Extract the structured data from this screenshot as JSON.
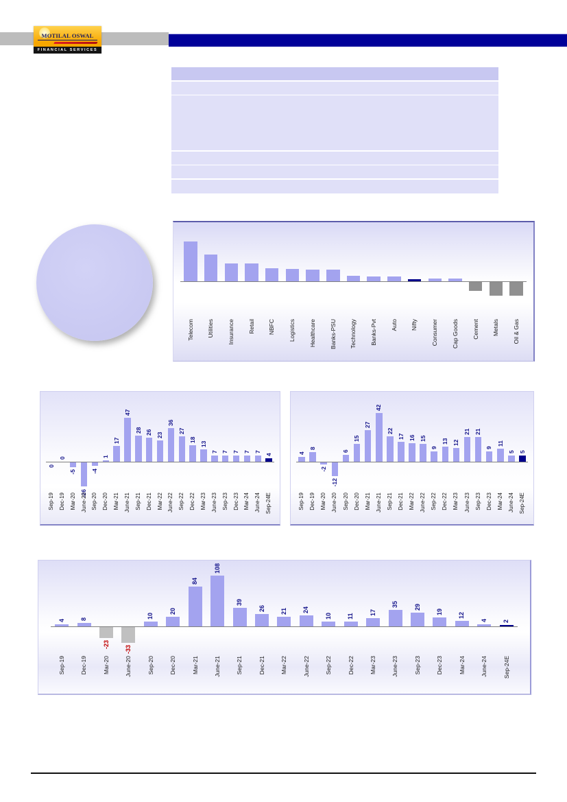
{
  "header": {
    "brand": "Motilal Oswal",
    "logo_name": "MOTILAL OSWAL",
    "logo_tagline": "FINANCIAL SERVICES"
  },
  "theme": {
    "band_gray": "#bcbcbc",
    "band_blue": "#000099",
    "table_header": "#c8c8f1",
    "table_row": "#e0e0f8",
    "pie_fill": "#c9c9f2",
    "bar_purple": "#a3a3ef",
    "bar_navy": "#00008b",
    "bar_gray_light": "#c0c0c0",
    "bar_gray_dark": "#909090",
    "label_navy": "#17178c",
    "label_red": "#c00000",
    "axis_gray": "#7f7f7f"
  },
  "chart_data": [
    {
      "id": "pie-chart",
      "type": "pie",
      "labels": [],
      "values": [
        100
      ],
      "colors": [
        "#c9c9f2"
      ],
      "legend": false,
      "title": ""
    },
    {
      "id": "sector-bar-chart",
      "type": "bar",
      "categories": [
        "Telecom",
        "Utilities",
        "Insurance",
        "Retail",
        "NBFC",
        "Logistics",
        "Healthcare",
        "Banks-PSU",
        "Technology",
        "Banks-Pvt",
        "Auto",
        "Nifty",
        "Consumer",
        "Cap Goods",
        "Cement",
        "Metals",
        "Oil & Gas"
      ],
      "values": [
        58,
        39,
        26,
        26,
        19,
        18,
        17,
        17,
        8,
        7,
        7,
        3,
        4,
        4,
        -13,
        -20,
        -20
      ],
      "values_estimated_from_bar_heights": true,
      "show_data_labels": false,
      "bar_color": "#a3a3ef",
      "negative_color": "#909090",
      "highlight": {
        "category": "Nifty",
        "color": "#00008b"
      },
      "ylim": [
        -22,
        86
      ],
      "grid": false,
      "legend": false,
      "title": ""
    },
    {
      "id": "quarterly-bar-chart-left",
      "type": "bar",
      "categories": [
        "Sep-19",
        "Dec-19",
        "Mar-20",
        "June-20",
        "Sep-20",
        "Dec-20",
        "Mar-21",
        "June-21",
        "Sep-21",
        "Dec-21",
        "Mar-22",
        "June-22",
        "Sep-22",
        "Dec-22",
        "Mar-23",
        "June-23",
        "Sep-23",
        "Dec-23",
        "Mar-24",
        "June-24",
        "Sep-24E"
      ],
      "values": [
        0,
        0,
        -5,
        -26,
        -4,
        1,
        17,
        47,
        28,
        26,
        23,
        36,
        27,
        18,
        13,
        7,
        7,
        7,
        7,
        7,
        4
      ],
      "show_data_labels": true,
      "bar_color": "#a3a3ef",
      "negative_color": "#a3a3ef",
      "last_bar_color": "#00008b",
      "label_color": "#17178c",
      "negative_label_color": "#17178c",
      "label_below_indices": [
        0
      ],
      "ylim": [
        -30,
        75
      ],
      "grid": false,
      "legend": false,
      "title": ""
    },
    {
      "id": "quarterly-bar-chart-right",
      "type": "bar",
      "categories": [
        "Sep-19",
        "Dec-19",
        "Mar-20",
        "June-20",
        "Sep-20",
        "Dec-20",
        "Mar-21",
        "June-21",
        "Sep-21",
        "Dec-21",
        "Mar-22",
        "June-22",
        "Sep-22",
        "Dec-22",
        "Mar-23",
        "June-23",
        "Sep-23",
        "Dec-23",
        "Mar-24",
        "June-24",
        "Sep-24E"
      ],
      "values": [
        4,
        8,
        -2,
        -12,
        6,
        15,
        27,
        42,
        22,
        17,
        16,
        15,
        9,
        13,
        12,
        21,
        21,
        9,
        11,
        5,
        5
      ],
      "show_data_labels": true,
      "bar_color": "#a3a3ef",
      "negative_color": "#a3a3ef",
      "last_bar_color": "#00008b",
      "label_color": "#17178c",
      "negative_label_color": "#17178c",
      "ylim": [
        -16,
        60
      ],
      "grid": false,
      "legend": false,
      "title": ""
    },
    {
      "id": "quarterly-bar-chart-bottom",
      "type": "bar",
      "categories": [
        "Sep-19",
        "Dec-19",
        "Mar-20",
        "June-20",
        "Sep-20",
        "Dec-20",
        "Mar-21",
        "June-21",
        "Sep-21",
        "Dec-21",
        "Mar-22",
        "June-22",
        "Sep-22",
        "Dec-22",
        "Mar-23",
        "June-23",
        "Sep-23",
        "Dec-23",
        "Mar-24",
        "June-24",
        "Sep-24E"
      ],
      "values": [
        4,
        8,
        -23,
        -33,
        10,
        20,
        84,
        108,
        39,
        26,
        21,
        24,
        10,
        11,
        17,
        35,
        29,
        19,
        12,
        4,
        2
      ],
      "show_data_labels": true,
      "bar_color": "#a3a3ef",
      "negative_color": "#c0c0c0",
      "last_bar_color": "#00008b",
      "label_color": "#17178c",
      "negative_label_color": "#c00000",
      "ylim": [
        -45,
        140
      ],
      "grid": false,
      "legend": false,
      "title": ""
    }
  ]
}
